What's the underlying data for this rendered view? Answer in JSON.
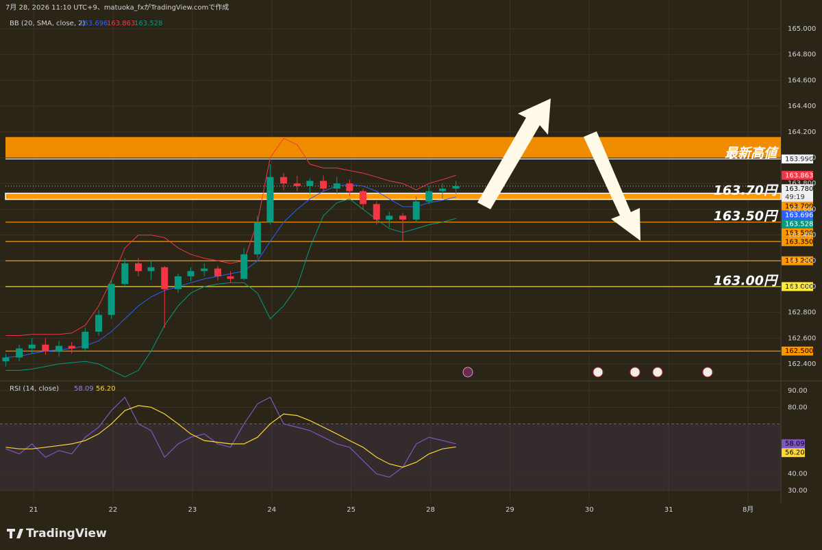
{
  "chart_data": {
    "type": "candlestick",
    "header": "7月 28, 2026 11:10 UTC+9、matuoka_fxがTradingView.comで作成",
    "brand": "TradingView",
    "x": [
      20.65,
      20.82,
      20.98,
      21.15,
      21.32,
      21.48,
      21.65,
      21.82,
      21.98,
      22.15,
      22.32,
      22.48,
      22.65,
      22.82,
      22.98,
      23.15,
      23.32,
      23.48,
      23.65,
      23.82,
      23.98,
      24.15,
      24.32,
      24.48,
      24.65,
      24.82,
      24.98,
      25.15,
      25.32,
      25.48,
      25.65,
      25.82,
      25.98,
      26.15,
      26.32
    ],
    "open": [
      162.42,
      162.45,
      162.52,
      162.55,
      162.5,
      162.54,
      162.52,
      162.65,
      162.78,
      163.02,
      163.18,
      163.12,
      163.15,
      162.98,
      163.08,
      163.12,
      163.14,
      163.08,
      163.06,
      163.25,
      163.5,
      163.85,
      163.8,
      163.78,
      163.82,
      163.76,
      163.8,
      163.74,
      163.64,
      163.52,
      163.55,
      163.52,
      163.66,
      163.74,
      163.76
    ],
    "high": [
      162.48,
      162.55,
      162.6,
      162.6,
      162.58,
      162.57,
      162.68,
      162.82,
      163.05,
      163.22,
      163.22,
      163.2,
      163.16,
      163.1,
      163.15,
      163.18,
      163.16,
      163.12,
      163.3,
      163.55,
      163.95,
      163.88,
      163.86,
      163.84,
      163.86,
      163.85,
      163.83,
      163.76,
      163.66,
      163.58,
      163.57,
      163.7,
      163.78,
      163.8,
      163.82
    ],
    "low": [
      162.38,
      162.42,
      162.48,
      162.47,
      162.46,
      162.48,
      162.5,
      162.62,
      162.75,
      163.0,
      163.08,
      163.05,
      162.68,
      162.95,
      163.04,
      163.08,
      163.05,
      163.03,
      163.05,
      163.22,
      163.48,
      163.75,
      163.74,
      163.72,
      163.74,
      163.72,
      163.7,
      163.6,
      163.48,
      163.46,
      163.35,
      163.5,
      163.64,
      163.68,
      163.72
    ],
    "close": [
      162.45,
      162.52,
      162.55,
      162.5,
      162.54,
      162.52,
      162.65,
      162.78,
      163.02,
      163.18,
      163.12,
      163.15,
      162.98,
      163.08,
      163.12,
      163.14,
      163.08,
      163.06,
      163.25,
      163.5,
      163.85,
      163.8,
      163.78,
      163.82,
      163.76,
      163.8,
      163.74,
      163.64,
      163.52,
      163.55,
      163.52,
      163.66,
      163.74,
      163.76,
      163.78
    ],
    "up_color": "#089981",
    "down_color": "#f23645",
    "xlim": [
      20.577,
      30.413
    ],
    "xticks": [
      21,
      22,
      23,
      24,
      25,
      {
        "value": 26,
        "label": "28"
      },
      {
        "value": 27,
        "label": "29"
      },
      {
        "value": 28,
        "label": "30"
      },
      {
        "value": 29,
        "label": "31"
      },
      {
        "value": 30,
        "label": "8月"
      }
    ],
    "ylim": [
      162.278,
      165.223
    ],
    "yticks": [
      {
        "value": 165.0,
        "label": "165.000"
      },
      {
        "value": 164.8,
        "label": "164.800"
      },
      {
        "value": 164.6,
        "label": "164.600"
      },
      {
        "value": 164.4,
        "label": "164.400"
      },
      {
        "value": 164.2,
        "label": "164.200"
      },
      {
        "value": 164.0,
        "label": "164.000"
      },
      {
        "value": 163.8,
        "label": "163.800"
      },
      {
        "value": 163.6,
        "label": "163.600"
      },
      {
        "value": 163.4,
        "label": "163.400"
      },
      {
        "value": 163.2,
        "label": "163.200"
      },
      {
        "value": 163.0,
        "label": "163.000"
      },
      {
        "value": 162.8,
        "label": "162.800"
      },
      {
        "value": 162.6,
        "label": "162.600"
      },
      {
        "value": 162.4,
        "label": "162.400"
      }
    ],
    "bb": {
      "label": "BB (20, SMA, close, 2)",
      "series": [
        {
          "color": "#2962ff",
          "values": [
            162.45,
            162.46,
            162.48,
            162.5,
            162.51,
            162.52,
            162.54,
            162.58,
            162.65,
            162.75,
            162.85,
            162.92,
            162.97,
            163.0,
            163.03,
            163.06,
            163.08,
            163.1,
            163.12,
            163.2,
            163.35,
            163.5,
            163.6,
            163.68,
            163.74,
            163.78,
            163.79,
            163.78,
            163.74,
            163.68,
            163.62,
            163.62,
            163.65,
            163.67,
            163.696
          ]
        },
        {
          "color": "#f23645",
          "values": [
            162.62,
            162.62,
            162.63,
            162.63,
            162.63,
            162.64,
            162.7,
            162.85,
            163.05,
            163.3,
            163.4,
            163.4,
            163.38,
            163.3,
            163.25,
            163.22,
            163.2,
            163.18,
            163.2,
            163.5,
            164.0,
            164.15,
            164.1,
            163.95,
            163.92,
            163.92,
            163.9,
            163.88,
            163.85,
            163.82,
            163.8,
            163.75,
            163.8,
            163.83,
            163.863
          ]
        },
        {
          "color": "#089981",
          "values": [
            162.35,
            162.35,
            162.36,
            162.38,
            162.4,
            162.41,
            162.42,
            162.4,
            162.35,
            162.3,
            162.35,
            162.5,
            162.7,
            162.85,
            162.95,
            163.0,
            163.02,
            163.03,
            163.03,
            162.95,
            162.75,
            162.85,
            163.0,
            163.3,
            163.55,
            163.65,
            163.68,
            163.6,
            163.52,
            163.45,
            163.42,
            163.45,
            163.48,
            163.5,
            163.528
          ]
        }
      ]
    },
    "zone": {
      "from": 164.0,
      "to": 164.16,
      "color": "#f08c00"
    },
    "levels": [
      {
        "value": 163.99,
        "label": "163.990",
        "color": "#ffffff",
        "note": "最新高値"
      },
      {
        "value": 163.7,
        "label": "163.700",
        "color": "#ff9800",
        "note": "163.70円",
        "width": 9
      },
      {
        "value": 163.5,
        "label": "163.500",
        "color": "#ff9800",
        "note": "163.50円"
      },
      {
        "value": 163.35,
        "label": "163.350",
        "color": "#ff9800"
      },
      {
        "value": 163.2,
        "label": "163.200",
        "color": "#ff9800"
      },
      {
        "value": 163.0,
        "label": "163.000",
        "color": "#ffeb3b",
        "note": "163.00円"
      },
      {
        "value": 162.5,
        "label": "162.500",
        "color": "#ff9800"
      }
    ],
    "last_price": {
      "value": 163.78,
      "label": "163.780",
      "countdown": "49:19"
    },
    "rsi": {
      "label": "RSI (14, close)",
      "ylim": [
        24.7,
        94.5
      ],
      "yticks": [
        {
          "value": 90,
          "label": "90.00"
        },
        {
          "value": 80,
          "label": "80.00"
        },
        {
          "value": 40,
          "label": "40.00"
        },
        {
          "value": 30,
          "label": "30.00"
        }
      ],
      "band": [
        30,
        70
      ],
      "series": [
        {
          "color": "#7e57c2",
          "values": [
            55,
            52,
            58,
            50,
            54,
            52,
            62,
            68,
            78,
            86,
            70,
            66,
            50,
            58,
            62,
            64,
            58,
            56,
            70,
            82,
            86,
            70,
            68,
            66,
            62,
            58,
            56,
            48,
            40,
            38,
            44,
            58,
            62,
            60,
            58.09
          ]
        },
        {
          "color": "#fdd835",
          "values": [
            56,
            55,
            55,
            56,
            57,
            58,
            60,
            64,
            70,
            78,
            81,
            80,
            76,
            70,
            64,
            60,
            59,
            58,
            58,
            62,
            70,
            76,
            75,
            72,
            68,
            64,
            60,
            56,
            50,
            46,
            44,
            47,
            52,
            55,
            56.2
          ],
          "value_label": "56.20"
        }
      ]
    }
  }
}
